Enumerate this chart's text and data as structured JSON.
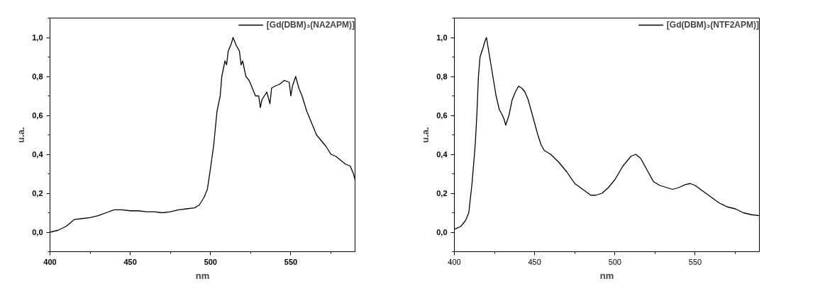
{
  "chart_data": [
    {
      "type": "line",
      "xlabel": "nm",
      "ylabel": "u.a.",
      "legend": "top right",
      "grid": false,
      "line_style": "solid",
      "marker": "none",
      "xlim": [
        400,
        590
      ],
      "ylim": [
        -0.1,
        1.1
      ],
      "xticks": [
        400,
        {
          "value": 425,
          "label": null
        },
        450,
        {
          "value": 475,
          "label": null
        },
        500,
        {
          "value": 525,
          "label": null
        },
        550,
        {
          "value": 575,
          "label": null
        }
      ],
      "yticks": [
        {
          "value": -0.1,
          "label": null
        },
        {
          "value": 0,
          "label": "0,0"
        },
        {
          "value": 0.1,
          "label": null
        },
        {
          "value": 0.2,
          "label": "0,2"
        },
        {
          "value": 0.3,
          "label": null
        },
        {
          "value": 0.4,
          "label": "0,4"
        },
        {
          "value": 0.5,
          "label": null
        },
        {
          "value": 0.6,
          "label": "0,6"
        },
        {
          "value": 0.7,
          "label": null
        },
        {
          "value": 0.8,
          "label": "0,8"
        },
        {
          "value": 0.9,
          "label": null
        },
        {
          "value": 1.0,
          "label": "1,0"
        },
        {
          "value": 1.1,
          "label": null
        }
      ],
      "x": [
        400,
        405,
        410,
        413,
        415,
        420,
        425,
        430,
        435,
        440,
        445,
        450,
        455,
        460,
        465,
        470,
        475,
        480,
        485,
        490,
        493,
        496,
        498,
        500,
        502,
        504,
        506,
        507,
        509,
        510,
        511,
        513,
        514,
        516,
        518,
        519,
        520,
        522,
        524,
        526,
        528,
        530,
        531,
        532,
        535,
        537,
        538,
        540,
        543,
        546,
        549,
        550,
        551,
        553,
        555,
        557,
        560,
        563,
        566,
        569,
        572,
        575,
        578,
        581,
        584,
        587,
        589,
        590
      ],
      "series": [
        {
          "name": "[Gd(DBM)₃(NA2APM)]",
          "color": "#000000",
          "values": [
            0.0,
            0.01,
            0.03,
            0.05,
            0.065,
            0.07,
            0.075,
            0.085,
            0.1,
            0.115,
            0.115,
            0.11,
            0.11,
            0.105,
            0.105,
            0.1,
            0.105,
            0.115,
            0.12,
            0.125,
            0.14,
            0.18,
            0.22,
            0.33,
            0.45,
            0.62,
            0.7,
            0.8,
            0.88,
            0.86,
            0.93,
            0.97,
            1.0,
            0.96,
            0.93,
            0.86,
            0.88,
            0.8,
            0.78,
            0.74,
            0.7,
            0.7,
            0.64,
            0.68,
            0.72,
            0.66,
            0.74,
            0.75,
            0.76,
            0.78,
            0.77,
            0.7,
            0.75,
            0.8,
            0.74,
            0.7,
            0.62,
            0.56,
            0.5,
            0.47,
            0.44,
            0.4,
            0.39,
            0.37,
            0.35,
            0.34,
            0.3,
            0.27
          ]
        }
      ]
    },
    {
      "type": "line",
      "xlabel": "nm",
      "ylabel": "u.a.",
      "legend": "top right",
      "grid": false,
      "line_style": "solid",
      "marker": "none",
      "xlim": [
        400,
        590
      ],
      "ylim": [
        -0.1,
        1.1
      ],
      "xticks": [
        400,
        {
          "value": 425,
          "label": null
        },
        450,
        {
          "value": 475,
          "label": null
        },
        500,
        {
          "value": 525,
          "label": null
        },
        550,
        {
          "value": 575,
          "label": null
        }
      ],
      "yticks": [
        {
          "value": -0.1,
          "label": null
        },
        {
          "value": 0,
          "label": "0,0"
        },
        {
          "value": 0.1,
          "label": null
        },
        {
          "value": 0.2,
          "label": "0,2"
        },
        {
          "value": 0.3,
          "label": null
        },
        {
          "value": 0.4,
          "label": "0,4"
        },
        {
          "value": 0.5,
          "label": null
        },
        {
          "value": 0.6,
          "label": "0,6"
        },
        {
          "value": 0.7,
          "label": null
        },
        {
          "value": 0.8,
          "label": "0,8"
        },
        {
          "value": 0.9,
          "label": null
        },
        {
          "value": 1.0,
          "label": "1,0"
        },
        {
          "value": 1.1,
          "label": null
        }
      ],
      "x": [
        400,
        404,
        407,
        409,
        411,
        413,
        414,
        415,
        416,
        418,
        419,
        420,
        421,
        422,
        424,
        426,
        428,
        430,
        431,
        432,
        434,
        436,
        438,
        440,
        442,
        444,
        446,
        448,
        450,
        452,
        454,
        456,
        460,
        465,
        470,
        475,
        480,
        485,
        488,
        492,
        496,
        500,
        505,
        510,
        513,
        516,
        520,
        524,
        528,
        532,
        536,
        540,
        544,
        547,
        550,
        555,
        560,
        565,
        570,
        575,
        580,
        585,
        590
      ],
      "series": [
        {
          "name": "[Gd(DBM)₃(NTF2APM)]",
          "color": "#000000",
          "values": [
            0.015,
            0.03,
            0.06,
            0.1,
            0.25,
            0.45,
            0.6,
            0.8,
            0.9,
            0.95,
            0.98,
            1.0,
            0.95,
            0.9,
            0.8,
            0.7,
            0.63,
            0.6,
            0.58,
            0.55,
            0.6,
            0.68,
            0.72,
            0.75,
            0.74,
            0.72,
            0.68,
            0.62,
            0.56,
            0.5,
            0.45,
            0.42,
            0.4,
            0.36,
            0.31,
            0.25,
            0.22,
            0.19,
            0.19,
            0.2,
            0.23,
            0.27,
            0.34,
            0.39,
            0.4,
            0.38,
            0.32,
            0.26,
            0.24,
            0.23,
            0.22,
            0.23,
            0.245,
            0.25,
            0.24,
            0.21,
            0.18,
            0.15,
            0.13,
            0.12,
            0.1,
            0.09,
            0.085
          ]
        }
      ]
    }
  ]
}
